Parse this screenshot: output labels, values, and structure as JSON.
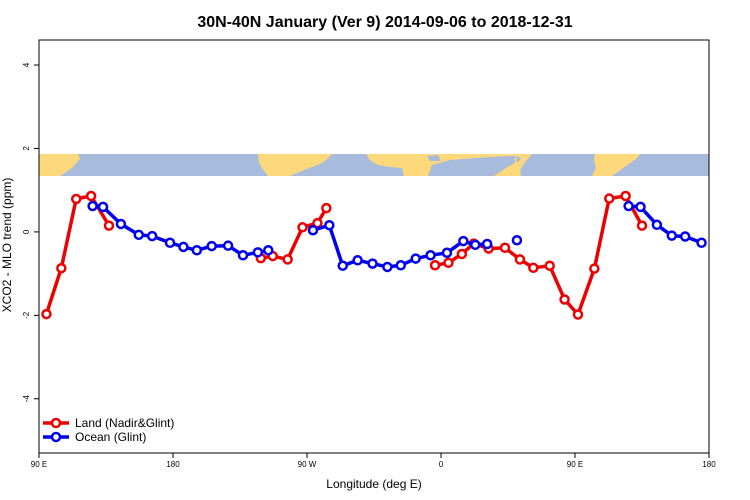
{
  "chart_data": {
    "type": "line",
    "title": "30N-40N January (Ver 9)   2014-09-06 to 2018-12-31",
    "xlabel": "Longitude (deg E)",
    "ylabel": "XCO2 - MLO trend (ppm)",
    "x_ticks": [
      {
        "value": 90,
        "label": "90 E"
      },
      {
        "value": 180,
        "label": "180"
      },
      {
        "value": 270,
        "label": "90 W"
      },
      {
        "value": 360,
        "label": "0"
      },
      {
        "value": 450,
        "label": "90 E"
      },
      {
        "value": 540,
        "label": "180"
      }
    ],
    "y_ticks": [
      {
        "value": -4,
        "label": "-4"
      },
      {
        "value": -2,
        "label": "-2"
      },
      {
        "value": 0,
        "label": "0"
      },
      {
        "value": 2,
        "label": "2"
      },
      {
        "value": 4,
        "label": "4"
      }
    ],
    "xlim": [
      90,
      540
    ],
    "ylim": [
      -5.3,
      4.6
    ],
    "grid": false,
    "legend_position": "bottom-left",
    "map_strip_colors": {
      "ocean": "#a7bcdc",
      "land": "#fdd97c"
    },
    "series": [
      {
        "name": "Land (Nadir&Glint)",
        "color": "#ee0000",
        "segments": [
          [
            [
              95,
              -1.97
            ],
            [
              105,
              -0.87
            ],
            [
              115,
              0.79
            ],
            [
              125,
              0.86
            ],
            [
              137,
              0.15
            ]
          ],
          [
            [
              239,
              -0.63
            ],
            [
              247,
              -0.58
            ],
            [
              257,
              -0.66
            ],
            [
              267,
              0.11
            ],
            [
              277,
              0.21
            ],
            [
              283,
              0.57
            ]
          ],
          [
            [
              356,
              -0.8
            ],
            [
              365,
              -0.74
            ],
            [
              374,
              -0.53
            ],
            [
              382,
              -0.28
            ],
            [
              392,
              -0.4
            ],
            [
              403,
              -0.38
            ],
            [
              413,
              -0.66
            ],
            [
              422,
              -0.86
            ],
            [
              433,
              -0.81
            ],
            [
              443,
              -1.62
            ],
            [
              452,
              -1.98
            ],
            [
              463,
              -0.88
            ],
            [
              473,
              0.8
            ],
            [
              484,
              0.86
            ],
            [
              495,
              0.15
            ]
          ]
        ]
      },
      {
        "name": "Ocean (Glint)",
        "color": "#0000ee",
        "segments": [
          [
            [
              126,
              0.62
            ],
            [
              133,
              0.6
            ],
            [
              145,
              0.19
            ],
            [
              157,
              -0.07
            ],
            [
              166,
              -0.1
            ],
            [
              178,
              -0.26
            ],
            [
              187,
              -0.36
            ],
            [
              196,
              -0.44
            ],
            [
              206,
              -0.34
            ],
            [
              217,
              -0.33
            ],
            [
              227,
              -0.56
            ],
            [
              237,
              -0.49
            ],
            [
              244,
              -0.44
            ]
          ],
          [
            [
              274,
              0.04
            ],
            [
              285,
              0.16
            ],
            [
              294,
              -0.81
            ],
            [
              304,
              -0.68
            ],
            [
              314,
              -0.76
            ],
            [
              324,
              -0.84
            ],
            [
              333,
              -0.8
            ],
            [
              343,
              -0.64
            ],
            [
              353,
              -0.56
            ],
            [
              364,
              -0.5
            ],
            [
              375,
              -0.22
            ],
            [
              383,
              -0.31
            ],
            [
              391,
              -0.29
            ]
          ],
          [
            [
              411,
              -0.2
            ]
          ],
          [
            [
              486,
              0.62
            ],
            [
              494,
              0.6
            ],
            [
              505,
              0.17
            ],
            [
              515,
              -0.09
            ],
            [
              524,
              -0.11
            ],
            [
              535,
              -0.26
            ]
          ]
        ]
      }
    ]
  }
}
